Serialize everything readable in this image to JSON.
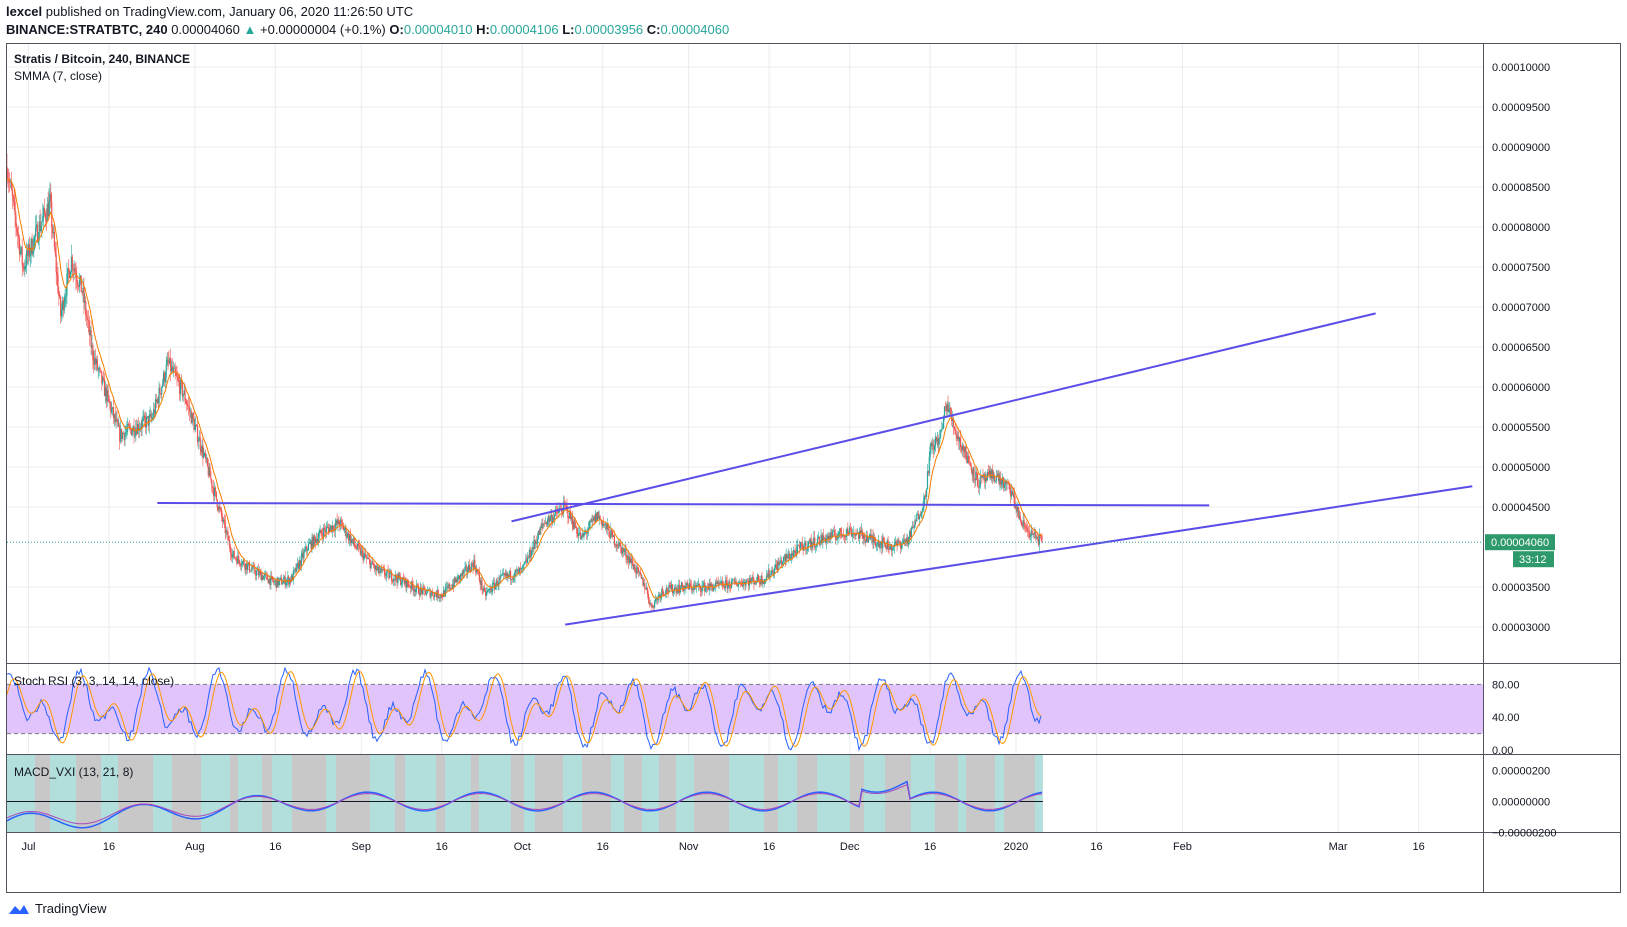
{
  "header": {
    "author": "lexcel",
    "published_text": "published on TradingView.com, January 06, 2020 11:26:50 UTC",
    "symbol_line": "BINANCE:STRATBTC, 240",
    "last": "0.00004060",
    "change_arrow": "▲",
    "change": "+0.00000004 (+0.1%)",
    "o_label": "O:",
    "o": "0.00004010",
    "h_label": "H:",
    "h": "0.00004106",
    "l_label": "L:",
    "l": "0.00003956",
    "c_label": "C:",
    "c": "0.00004060"
  },
  "legend": {
    "series": "Stratis / Bitcoin, 240, BINANCE",
    "indicator": "SMMA (7, close)",
    "stoch": "Stoch RSI (3, 3, 14, 14, close)",
    "macd": "MACD_VXI (13, 21, 8)"
  },
  "price_axis": [
    "0.00010000",
    "0.00009500",
    "0.00009000",
    "0.00008500",
    "0.00008000",
    "0.00007500",
    "0.00007000",
    "0.00006500",
    "0.00006000",
    "0.00005500",
    "0.00005000",
    "0.00004500",
    "0.00003500",
    "0.00003000"
  ],
  "last_price_label": "0.00004060",
  "countdown": "33:12",
  "stoch_axis": [
    "80.00",
    "40.00",
    "0.00"
  ],
  "macd_axis": [
    "0.00000200",
    "0.00000000",
    "−0.00000200"
  ],
  "time_axis": [
    "Jul",
    "16",
    "Aug",
    "16",
    "Sep",
    "16",
    "Oct",
    "16",
    "Nov",
    "16",
    "Dec",
    "16",
    "2020",
    "16",
    "Feb",
    "Mar",
    "16"
  ],
  "footer": {
    "brand": "TradingView"
  },
  "colors": {
    "up": "#26a69a",
    "down": "#ef5350",
    "trendline": "#5b4de8",
    "smma": "#f57c00",
    "stoch_band": "#e1c4fb",
    "macd_bg_a": "#b2dfdb",
    "macd_bg_b": "#c8c8c8"
  },
  "chart_data": [
    {
      "type": "candlestick",
      "title": "Stratis / Bitcoin, 240, BINANCE",
      "x_range": [
        "2019-06-27",
        "2020-03-28"
      ],
      "ylim": [
        2.55e-05,
        0.000103
      ],
      "price_path": [
        [
          "2019-06-27",
          8.75e-05
        ],
        [
          "2019-06-30",
          7.5e-05
        ],
        [
          "2019-07-03",
          8e-05
        ],
        [
          "2019-07-05",
          8.3e-05
        ],
        [
          "2019-07-07",
          6.9e-05
        ],
        [
          "2019-07-09",
          7.6e-05
        ],
        [
          "2019-07-11",
          7.2e-05
        ],
        [
          "2019-07-13",
          6.4e-05
        ],
        [
          "2019-07-15",
          6e-05
        ],
        [
          "2019-07-18",
          5.4e-05
        ],
        [
          "2019-07-21",
          5.5e-05
        ],
        [
          "2019-07-24",
          5.6e-05
        ],
        [
          "2019-07-27",
          6.3e-05
        ],
        [
          "2019-07-30",
          5.9e-05
        ],
        [
          "2019-08-02",
          5.3e-05
        ],
        [
          "2019-08-05",
          4.6e-05
        ],
        [
          "2019-08-08",
          3.9e-05
        ],
        [
          "2019-08-12",
          3.7e-05
        ],
        [
          "2019-08-16",
          3.55e-05
        ],
        [
          "2019-08-19",
          3.6e-05
        ],
        [
          "2019-08-22",
          4e-05
        ],
        [
          "2019-08-25",
          4.2e-05
        ],
        [
          "2019-08-28",
          4.3e-05
        ],
        [
          "2019-08-31",
          4e-05
        ],
        [
          "2019-09-04",
          3.7e-05
        ],
        [
          "2019-09-08",
          3.6e-05
        ],
        [
          "2019-09-12",
          3.45e-05
        ],
        [
          "2019-09-16",
          3.4e-05
        ],
        [
          "2019-09-19",
          3.6e-05
        ],
        [
          "2019-09-22",
          3.8e-05
        ],
        [
          "2019-09-24",
          3.4e-05
        ],
        [
          "2019-09-27",
          3.6e-05
        ],
        [
          "2019-10-01",
          3.7e-05
        ],
        [
          "2019-10-05",
          4.3e-05
        ],
        [
          "2019-10-09",
          4.5e-05
        ],
        [
          "2019-10-12",
          4.1e-05
        ],
        [
          "2019-10-15",
          4.4e-05
        ],
        [
          "2019-10-18",
          4.1e-05
        ],
        [
          "2019-10-21",
          3.85e-05
        ],
        [
          "2019-10-24",
          3.5e-05
        ],
        [
          "2019-10-25",
          3.25e-05
        ],
        [
          "2019-10-27",
          3.45e-05
        ],
        [
          "2019-10-31",
          3.5e-05
        ],
        [
          "2019-11-05",
          3.5e-05
        ],
        [
          "2019-11-10",
          3.55e-05
        ],
        [
          "2019-11-15",
          3.6e-05
        ],
        [
          "2019-11-18",
          3.8e-05
        ],
        [
          "2019-11-22",
          4e-05
        ],
        [
          "2019-11-26",
          4.1e-05
        ],
        [
          "2019-12-01",
          4.2e-05
        ],
        [
          "2019-12-05",
          4.1e-05
        ],
        [
          "2019-12-09",
          4e-05
        ],
        [
          "2019-12-12",
          4.1e-05
        ],
        [
          "2019-12-15",
          4.6e-05
        ],
        [
          "2019-12-16",
          5.2e-05
        ],
        [
          "2019-12-18",
          5.4e-05
        ],
        [
          "2019-12-19",
          5.8e-05
        ],
        [
          "2019-12-21",
          5.4e-05
        ],
        [
          "2019-12-23",
          5.1e-05
        ],
        [
          "2019-12-25",
          4.8e-05
        ],
        [
          "2019-12-28",
          4.9e-05
        ],
        [
          "2019-12-31",
          4.7e-05
        ],
        [
          "2020-01-02",
          4.3e-05
        ],
        [
          "2020-01-04",
          4.15e-05
        ],
        [
          "2020-01-06",
          4.06e-05
        ]
      ],
      "trendlines": [
        {
          "from": [
            "2019-07-25",
            4.55e-05
          ],
          "to": [
            "2020-02-06",
            4.52e-05
          ]
        },
        {
          "from": [
            "2019-09-29",
            4.32e-05
          ],
          "to": [
            "2020-03-08",
            6.92e-05
          ]
        },
        {
          "from": [
            "2019-10-09",
            3.03e-05
          ],
          "to": [
            "2020-03-26",
            4.76e-05
          ]
        }
      ],
      "last_price": 4.06e-05
    },
    {
      "type": "line",
      "title": "Stoch RSI (3, 3, 14, 14, close)",
      "ylim": [
        0,
        100
      ],
      "bands": [
        20,
        80
      ],
      "series": [
        {
          "values": "oscillating 0–100"
        }
      ]
    },
    {
      "type": "line",
      "title": "MACD_VXI (13, 21, 8)",
      "ylim": [
        -3.4e-06,
        2.4e-06
      ]
    }
  ]
}
